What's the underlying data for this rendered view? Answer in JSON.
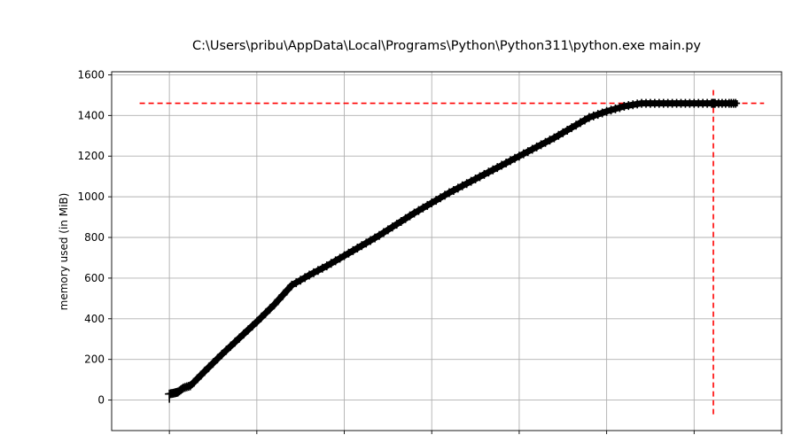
{
  "window_title": "C:\\Users\\pribu\\AppData\\Local\\Programs\\Python\\Python311\\python.exe main.py",
  "chart_data": {
    "type": "line",
    "title": "C:\\Users\\pribu\\AppData\\Local\\Programs\\Python\\Python311\\python.exe main.py",
    "xlabel": "",
    "ylabel": "memory used (in MiB)",
    "ylim": [
      -150,
      1615
    ],
    "xlim": [
      -0.33,
      3.5
    ],
    "yticks": [
      0,
      200,
      400,
      600,
      800,
      1000,
      1200,
      1400,
      1600
    ],
    "xticks_shown_as_marks_only": true,
    "grid": true,
    "series": [
      {
        "color": "#000000",
        "marker": "+",
        "x": [
          0.0,
          0.03,
          0.05,
          0.08,
          0.12,
          0.2,
          0.3,
          0.4,
          0.5,
          0.6,
          0.7,
          0.8,
          0.9,
          1.0,
          1.1,
          1.2,
          1.3,
          1.4,
          1.5,
          1.6,
          1.7,
          1.8,
          1.9,
          2.0,
          2.1,
          2.2,
          2.3,
          2.4,
          2.5,
          2.6,
          2.7,
          2.8,
          2.9,
          3.0,
          3.1,
          3.12,
          3.2,
          3.25
        ],
        "y": [
          30,
          35,
          40,
          60,
          70,
          140,
          225,
          305,
          385,
          470,
          565,
          615,
          660,
          710,
          760,
          810,
          865,
          920,
          970,
          1020,
          1065,
          1110,
          1155,
          1200,
          1245,
          1290,
          1340,
          1390,
          1420,
          1445,
          1460,
          1460,
          1460,
          1460,
          1460,
          1460,
          1460,
          1460
        ]
      }
    ],
    "reference_lines": [
      {
        "orientation": "horizontal",
        "value": 1460,
        "from_x": -0.17,
        "to_x": 3.4,
        "color": "#ff0000",
        "style": "dashed"
      },
      {
        "orientation": "vertical",
        "value": 3.11,
        "from_y": -70,
        "to_y": 1535,
        "color": "#ff0000",
        "style": "dashed"
      }
    ]
  }
}
